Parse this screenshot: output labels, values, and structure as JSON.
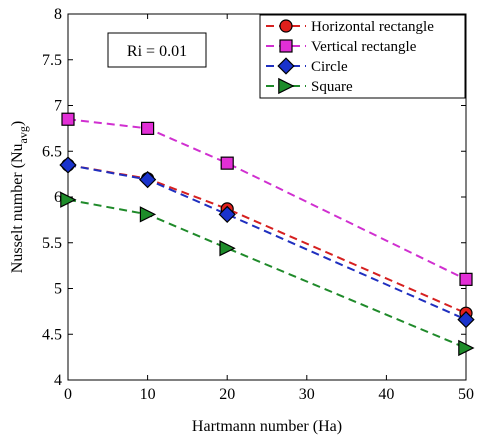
{
  "chart_data": {
    "type": "line",
    "xlabel": "Hartmann number (Ha)",
    "ylabel_main": "Nusselt number (Nu",
    "ylabel_sub": "avg",
    "ylabel_close": ")",
    "annotation": "Ri = 0.01",
    "xlim": [
      0,
      50
    ],
    "ylim": [
      4,
      8
    ],
    "xticks": [
      0,
      10,
      20,
      30,
      40,
      50
    ],
    "yticks": [
      4,
      4.5,
      5,
      5.5,
      6,
      6.5,
      7,
      7.5,
      8
    ],
    "ytick_labels": [
      "4",
      "4.5",
      "5",
      "5.5",
      "6",
      "6.5",
      "7",
      "7.5",
      "8"
    ],
    "x": [
      0,
      10,
      20,
      50
    ],
    "legend_position": "top-right",
    "grid": false,
    "series": [
      {
        "name": "Horizontal rectangle",
        "values": [
          6.35,
          6.2,
          5.87,
          4.73
        ],
        "line_color": "#d62020",
        "fill_color": "#e0201c",
        "marker": "circle"
      },
      {
        "name": "Vertical rectangle",
        "values": [
          6.85,
          6.75,
          6.37,
          5.1
        ],
        "line_color": "#d02fd0",
        "fill_color": "#e22fd6",
        "marker": "square"
      },
      {
        "name": "Circle",
        "values": [
          6.35,
          6.19,
          5.81,
          4.66
        ],
        "line_color": "#1f2fbf",
        "fill_color": "#1a33cc",
        "marker": "diamond"
      },
      {
        "name": "Square",
        "values": [
          5.97,
          5.81,
          5.44,
          4.35
        ],
        "line_color": "#1f8a2a",
        "fill_color": "#1e8c2a",
        "marker": "triangle-right"
      }
    ]
  }
}
